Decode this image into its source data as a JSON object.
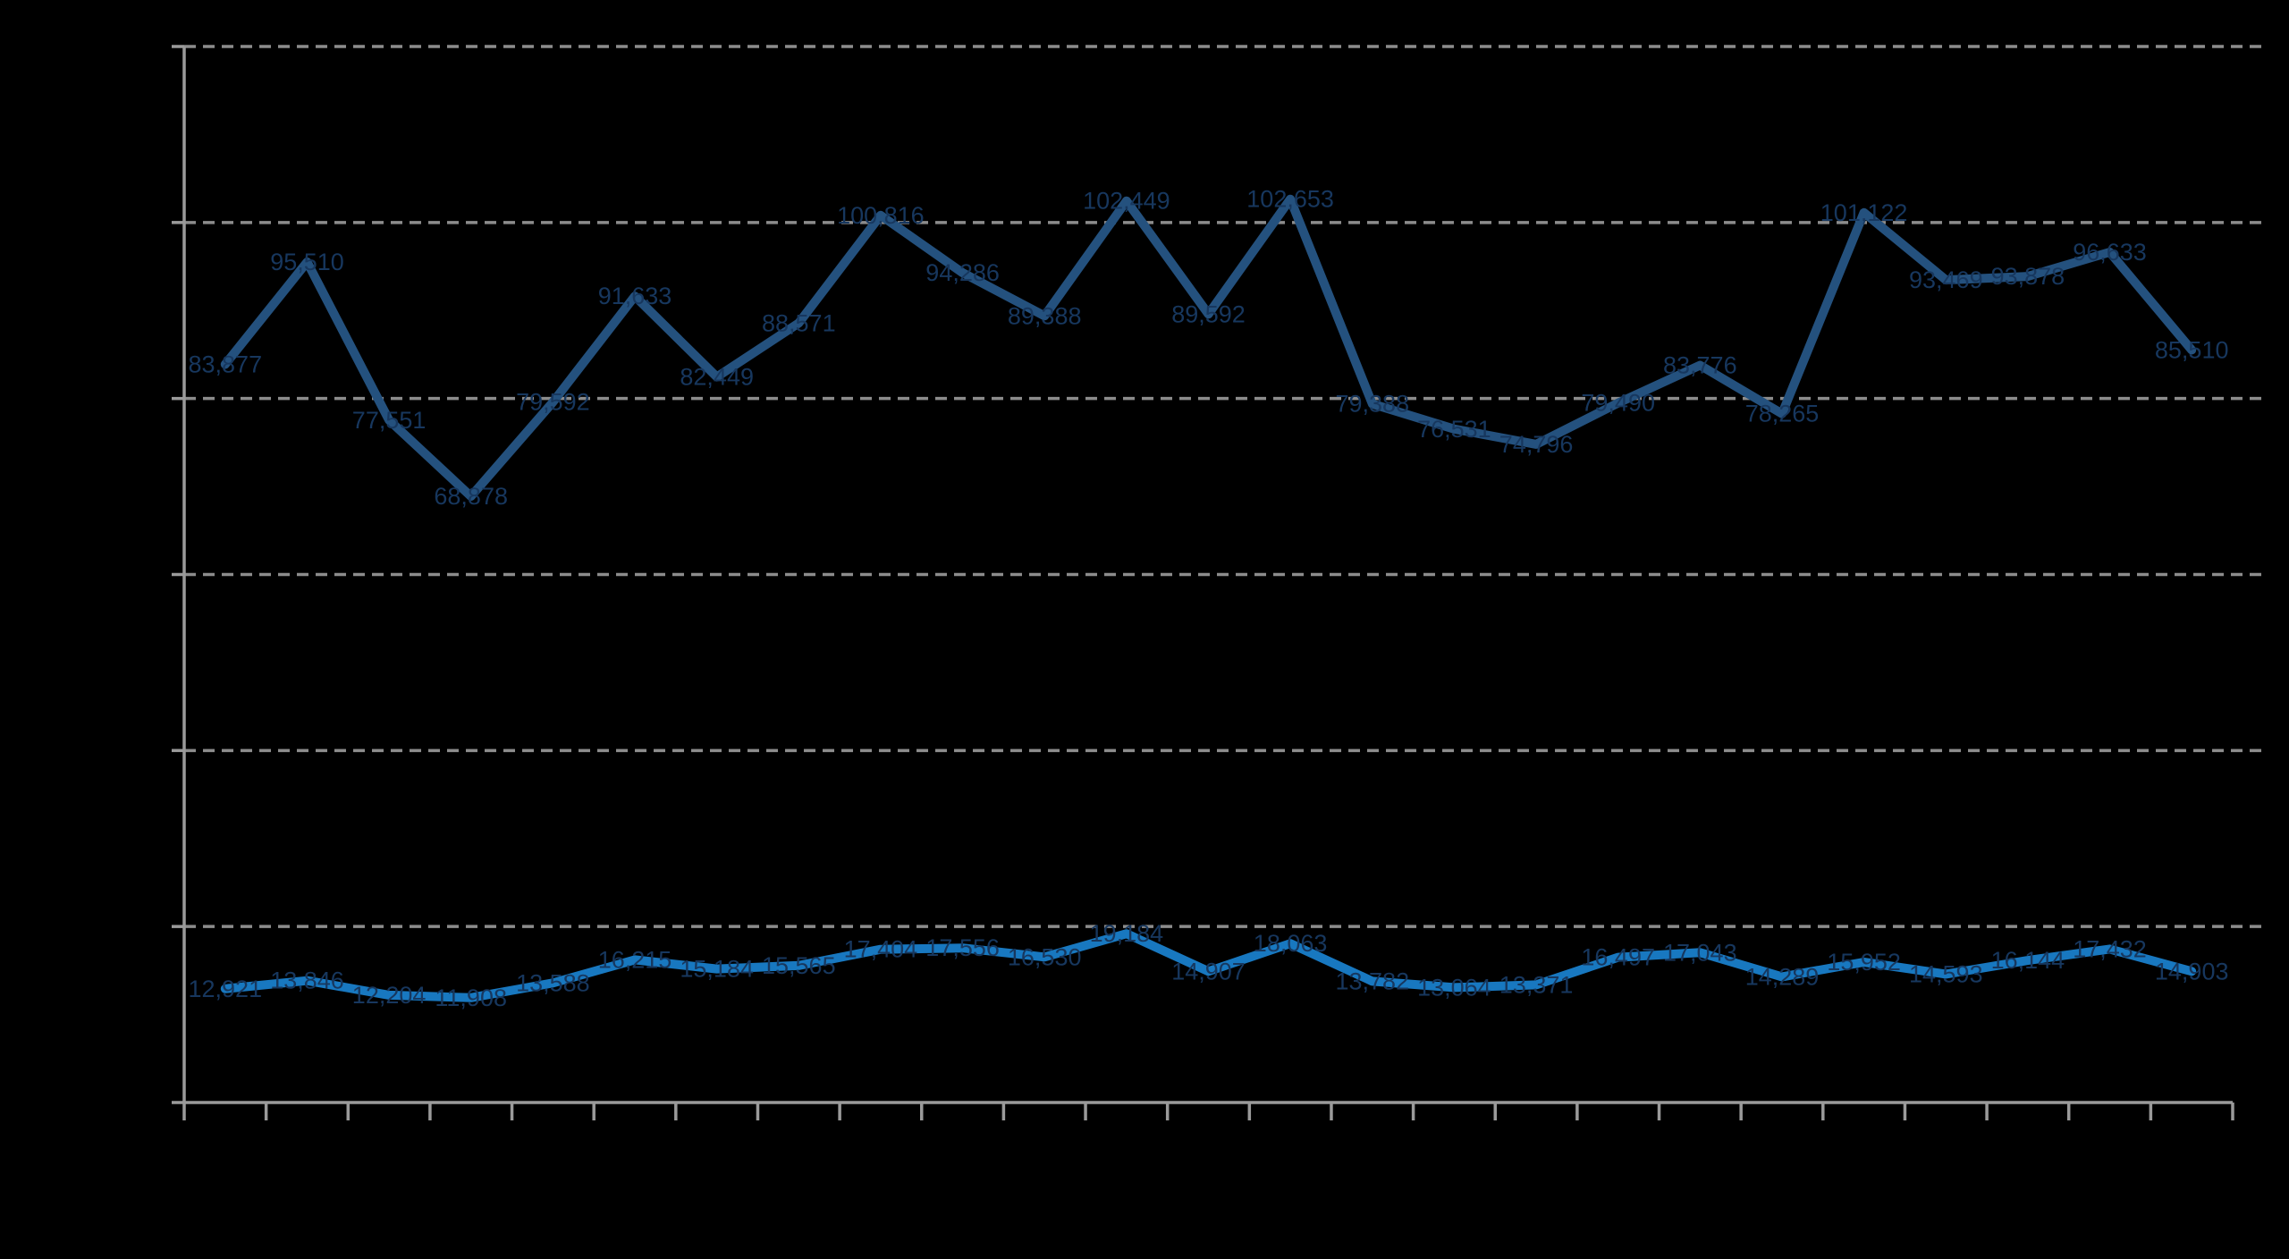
{
  "page": {
    "background_color": "#000000",
    "title_text": "",
    "note": "chart rendered on black background; axis tick labels, title and legend are not visible in the pixels"
  },
  "chart_data": {
    "type": "line",
    "title": "",
    "xlabel": "",
    "ylabel": "",
    "ylim": [
      0,
      120000
    ],
    "y_gridline_step": 20000,
    "gridlines": "horizontal, dashed, gray",
    "x_tick_count": 26,
    "point_count": 25,
    "legend_position": "none-visible",
    "colors": {
      "gridline": "#8C8C8C",
      "axis": "#9A9A9A",
      "data_label": "#17375E",
      "series_upper": "#24517E",
      "series_lower": "#1878C0"
    },
    "series": [
      {
        "id": "upper-line",
        "color": "#24517E",
        "values": [
          83877,
          95510,
          77551,
          68878,
          79592,
          91633,
          82449,
          88571,
          100816,
          94286,
          89388,
          102449,
          89592,
          102653,
          79388,
          76531,
          74796,
          79490,
          83776,
          78265,
          101122,
          93469,
          93878,
          96633,
          85510
        ],
        "data_labels": [
          "83,877",
          "95,510",
          "77,551",
          "68,878",
          "79,592",
          "91,633",
          "82,449",
          "88,571",
          "100,816",
          "94,286",
          "89,388",
          "102,449",
          "89,592",
          "102,653",
          "79,388",
          "76,531",
          "74,796",
          "79,490",
          "83,776",
          "78,265",
          "101,122",
          "93,469",
          "93,878",
          "96,633",
          "85,510"
        ]
      },
      {
        "id": "lower-line",
        "color": "#1878C0",
        "values": [
          12921,
          13846,
          12204,
          11908,
          13588,
          16215,
          15184,
          15565,
          17404,
          17556,
          16530,
          19184,
          14907,
          18063,
          13782,
          13064,
          13371,
          16497,
          17043,
          14289,
          15952,
          14593,
          16144,
          17432,
          14903
        ],
        "data_labels": [
          "12,921",
          "13,846",
          "12,204",
          "11,908",
          "13,588",
          "16,215",
          "15,184",
          "15,565",
          "17,404",
          "17,556",
          "16,530",
          "19,184",
          "14,907",
          "18,063",
          "13,782",
          "13,064",
          "13,371",
          "16,497",
          "17,043",
          "14,289",
          "15,952",
          "14,593",
          "16,144",
          "17,432",
          "14,903"
        ]
      }
    ]
  }
}
